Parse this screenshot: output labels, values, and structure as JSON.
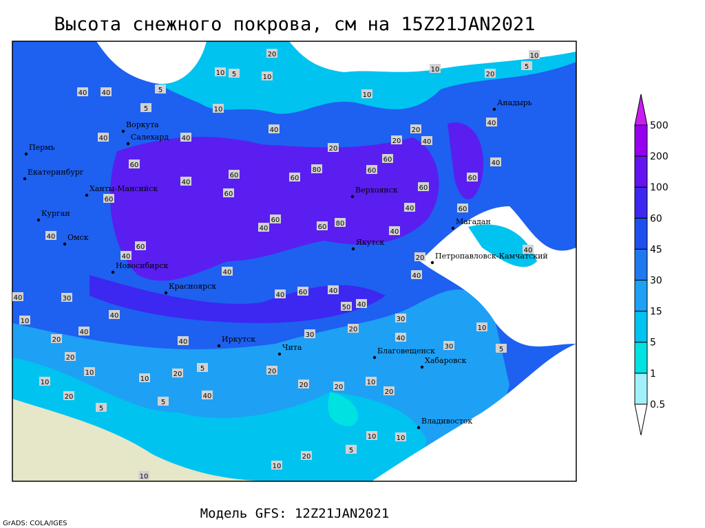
{
  "title": "Высота снежного покрова, см на 15Z21JAN2021",
  "footer": "Модель GFS: 12Z21JAN2021",
  "credit": "GrADS: COLA/IGES",
  "legend": {
    "levels": [
      0.5,
      1,
      5,
      15,
      30,
      45,
      60,
      100,
      200,
      500
    ],
    "colors": [
      "#ffffff",
      "#a0f0fa",
      "#00e1e1",
      "#00c3f0",
      "#1ea0f5",
      "#1e78f0",
      "#1e50f0",
      "#3c28f0",
      "#6414f0",
      "#9600f0",
      "#c81ef0"
    ]
  },
  "cities": [
    "Воркута",
    "Салехард",
    "Пермь",
    "Екатеринбург",
    "Ханты-Мансийск",
    "Курган",
    "Омск",
    "Новосибирск",
    "Красноярск",
    "Иркутск",
    "Чита",
    "Благовещенск",
    "Хабаровск",
    "Владивосток",
    "Якутск",
    "Верхоянск",
    "Магадан",
    "Петропавловск-Камчатский",
    "Анадырь"
  ],
  "contour_labels": [
    20,
    10,
    5,
    10,
    10,
    10,
    20,
    10,
    5,
    5,
    40,
    40,
    10,
    5,
    40,
    40,
    40,
    20,
    20,
    40,
    20,
    40,
    60,
    60,
    60,
    80,
    60,
    60,
    60,
    60,
    40,
    60,
    40,
    60,
    60,
    60,
    80,
    40,
    60,
    40,
    40,
    60,
    40,
    40,
    20,
    40,
    40,
    40,
    30,
    40,
    60,
    40,
    40,
    40,
    50,
    30,
    10,
    40,
    40,
    40,
    30,
    20,
    40,
    30,
    10,
    5,
    20,
    20,
    10,
    20,
    5,
    10,
    10,
    20,
    5,
    40,
    20,
    20,
    20,
    10,
    20,
    5,
    10,
    10,
    20,
    5,
    10,
    10
  ]
}
